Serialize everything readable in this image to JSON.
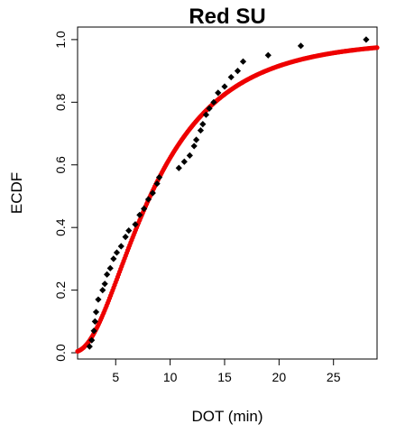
{
  "chart_data": {
    "type": "scatter",
    "title": "Red SU",
    "xlabel": "DOT (min)",
    "ylabel": "ECDF",
    "xlim": [
      1.5,
      29
    ],
    "ylim": [
      -0.02,
      1.04
    ],
    "x_ticks": [
      5,
      10,
      15,
      20,
      25
    ],
    "x_tick_labels": [
      "5",
      "10",
      "15",
      "20",
      "25"
    ],
    "y_ticks": [
      0.0,
      0.2,
      0.4,
      0.6,
      0.8,
      1.0
    ],
    "y_tick_labels": [
      "0.0",
      "0.2",
      "0.4",
      "0.6",
      "0.8",
      "1.0"
    ],
    "grid": false,
    "series": [
      {
        "kind": "empirical",
        "color": "#000000",
        "marker": "diamond",
        "points": [
          [
            2.6,
            0.02
          ],
          [
            2.8,
            0.04
          ],
          [
            3.0,
            0.07
          ],
          [
            3.1,
            0.1
          ],
          [
            3.2,
            0.13
          ],
          [
            3.4,
            0.17
          ],
          [
            3.8,
            0.2
          ],
          [
            4.0,
            0.22
          ],
          [
            4.2,
            0.25
          ],
          [
            4.5,
            0.27
          ],
          [
            4.8,
            0.3
          ],
          [
            5.1,
            0.32
          ],
          [
            5.5,
            0.34
          ],
          [
            5.9,
            0.37
          ],
          [
            6.2,
            0.39
          ],
          [
            6.8,
            0.41
          ],
          [
            7.2,
            0.44
          ],
          [
            7.6,
            0.46
          ],
          [
            8.0,
            0.49
          ],
          [
            8.4,
            0.51
          ],
          [
            8.8,
            0.54
          ],
          [
            9.0,
            0.56
          ],
          [
            10.8,
            0.59
          ],
          [
            11.3,
            0.61
          ],
          [
            11.8,
            0.63
          ],
          [
            12.2,
            0.66
          ],
          [
            12.4,
            0.68
          ],
          [
            12.8,
            0.71
          ],
          [
            13.0,
            0.73
          ],
          [
            13.3,
            0.76
          ],
          [
            13.6,
            0.78
          ],
          [
            14.0,
            0.8
          ],
          [
            14.4,
            0.83
          ],
          [
            15.0,
            0.85
          ],
          [
            15.6,
            0.88
          ],
          [
            16.2,
            0.9
          ],
          [
            16.7,
            0.93
          ],
          [
            19.0,
            0.95
          ],
          [
            22.0,
            0.98
          ],
          [
            28.0,
            1.0
          ]
        ]
      },
      {
        "kind": "fitted",
        "color": "#ee0000",
        "marker": "circle",
        "curve": {
          "distribution": "lognormal",
          "meanlog": 2.1,
          "sdlog": 0.65,
          "x_from": 1.5,
          "x_to": 29
        }
      }
    ]
  }
}
